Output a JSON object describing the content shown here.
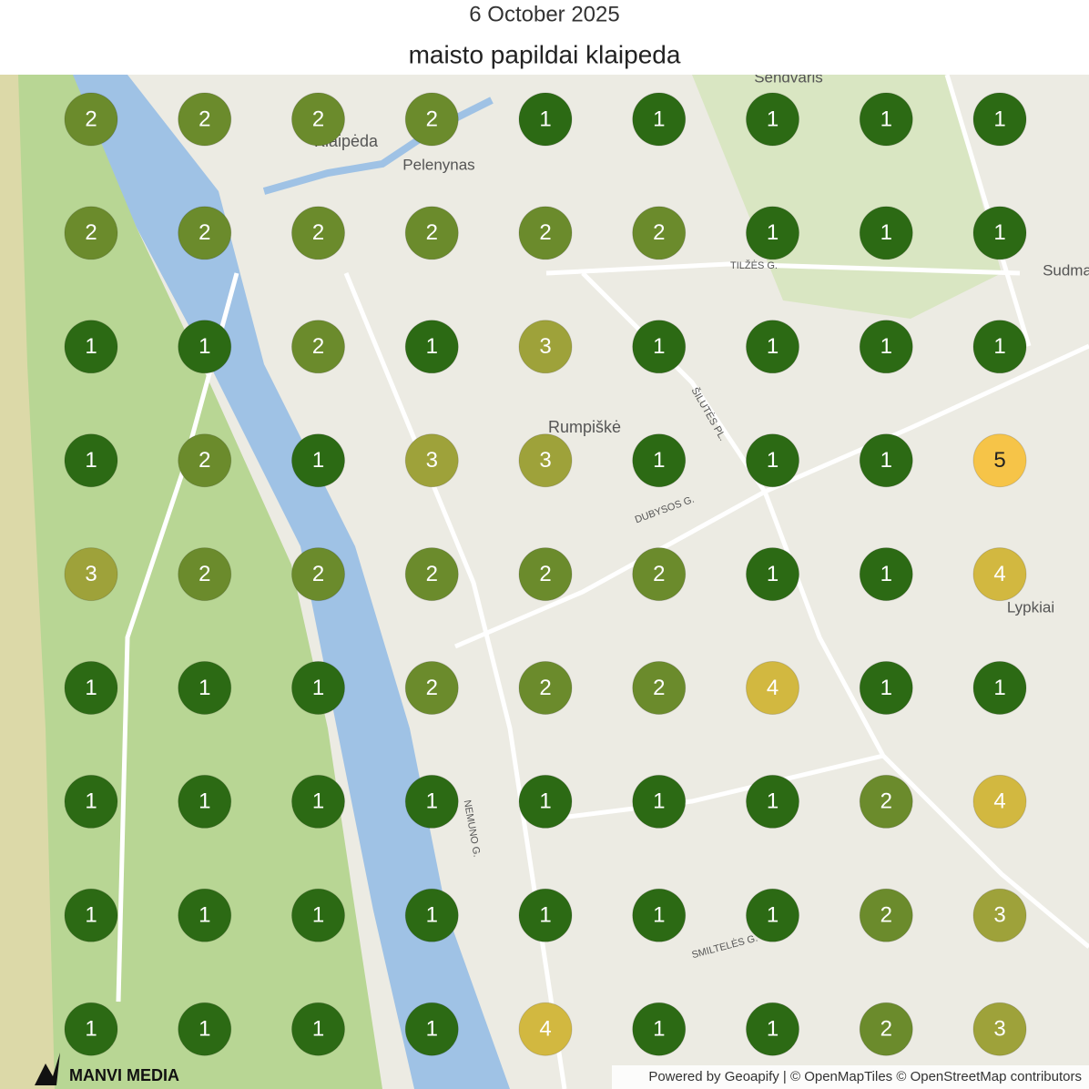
{
  "header": {
    "date": "6 October 2025",
    "title": "maisto papildai klaipeda"
  },
  "grid": {
    "rows": [
      [
        2,
        2,
        2,
        2,
        1,
        1,
        1,
        1,
        1
      ],
      [
        2,
        2,
        2,
        2,
        2,
        2,
        1,
        1,
        1
      ],
      [
        1,
        1,
        2,
        1,
        3,
        1,
        1,
        1,
        1
      ],
      [
        1,
        2,
        1,
        3,
        3,
        1,
        1,
        1,
        5
      ],
      [
        3,
        2,
        2,
        2,
        2,
        2,
        1,
        1,
        4
      ],
      [
        1,
        1,
        1,
        2,
        2,
        2,
        4,
        1,
        1
      ],
      [
        1,
        1,
        1,
        1,
        1,
        1,
        1,
        2,
        4
      ],
      [
        1,
        1,
        1,
        1,
        1,
        1,
        1,
        2,
        3
      ],
      [
        1,
        1,
        1,
        1,
        4,
        1,
        1,
        2,
        3
      ]
    ],
    "rank_colors": {
      "1": "#2c6a14",
      "2": "#6b8b2c",
      "3": "#9ea23a",
      "4": "#d2b840",
      "5": "#f6c448"
    }
  },
  "map_labels": [
    "Sendvaris",
    "Klaipėda",
    "Pelenynas",
    "Rumpiškė",
    "Lypkiai",
    "Sudma",
    "TILŽĖS G.",
    "DUBYSOS G.",
    "ŠILUTĖS PL.",
    "NEMUNO G.",
    "SMILTELĖS G."
  ],
  "footer": {
    "logo": "MANVI MEDIA",
    "attribution": "Powered by Geoapify | © OpenMapTiles © OpenStreetMap contributors"
  }
}
